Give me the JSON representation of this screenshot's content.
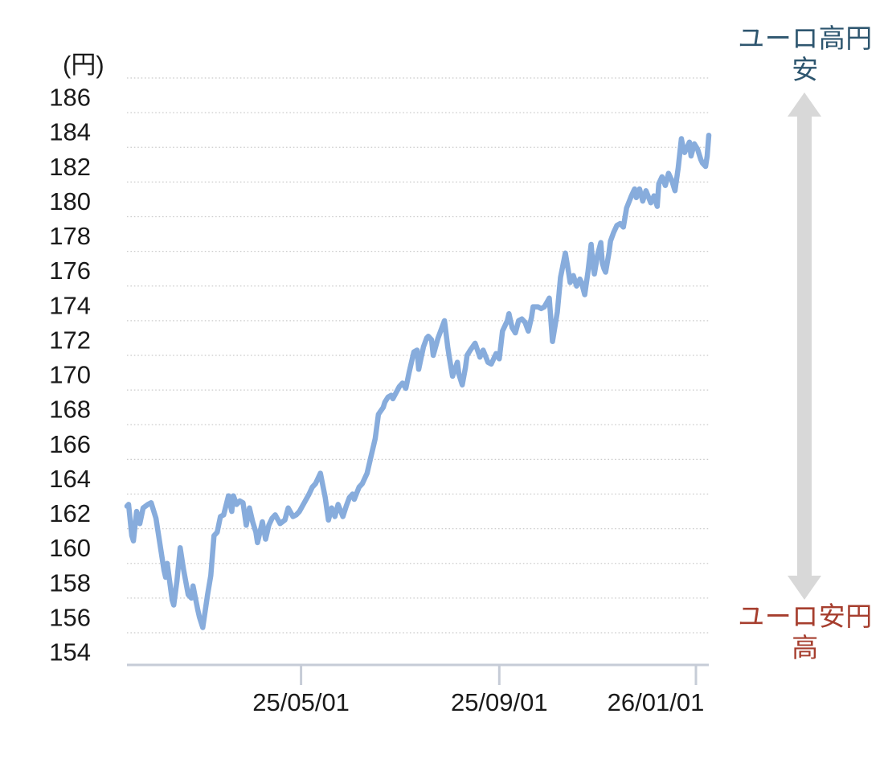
{
  "chart_data": {
    "type": "line",
    "title": "",
    "y_axis": {
      "unit_label": "(円)",
      "ticks": [
        186,
        184,
        182,
        180,
        178,
        176,
        174,
        172,
        170,
        168,
        166,
        164,
        162,
        160,
        158,
        156,
        154
      ],
      "ylim": [
        152.2,
        186
      ],
      "grid": "dotted"
    },
    "x_axis": {
      "start_date": "2025-01-13",
      "end_date": "2026-01-09",
      "span_days": 361,
      "ticks": [
        {
          "label": "25/05/01",
          "date": "2025-05-01"
        },
        {
          "label": "25/09/01",
          "date": "2025-09-01"
        },
        {
          "label": "26/01/01",
          "date": "2026-01-01"
        }
      ]
    },
    "series": [
      {
        "points": [
          [
            "2025-01-13",
            161.3
          ],
          [
            "2025-01-14",
            161.4
          ],
          [
            "2025-01-16",
            159.6
          ],
          [
            "2025-01-17",
            159.3
          ],
          [
            "2025-01-19",
            161.0
          ],
          [
            "2025-01-21",
            160.3
          ],
          [
            "2025-01-23",
            161.2
          ],
          [
            "2025-01-26",
            161.4
          ],
          [
            "2025-01-28",
            161.5
          ],
          [
            "2025-01-31",
            160.6
          ],
          [
            "2025-02-02",
            159.4
          ],
          [
            "2025-02-05",
            157.6
          ],
          [
            "2025-02-06",
            157.2
          ],
          [
            "2025-02-07",
            158.0
          ],
          [
            "2025-02-10",
            155.9
          ],
          [
            "2025-02-11",
            155.6
          ],
          [
            "2025-02-13",
            157.0
          ],
          [
            "2025-02-15",
            158.9
          ],
          [
            "2025-02-17",
            157.7
          ],
          [
            "2025-02-20",
            156.2
          ],
          [
            "2025-02-22",
            156.0
          ],
          [
            "2025-02-23",
            156.7
          ],
          [
            "2025-02-26",
            155.3
          ],
          [
            "2025-02-27",
            154.9
          ],
          [
            "2025-03-01",
            154.3
          ],
          [
            "2025-03-04",
            156.2
          ],
          [
            "2025-03-06",
            157.3
          ],
          [
            "2025-03-08",
            159.6
          ],
          [
            "2025-03-10",
            159.8
          ],
          [
            "2025-03-12",
            160.7
          ],
          [
            "2025-03-14",
            160.8
          ],
          [
            "2025-03-17",
            161.9
          ],
          [
            "2025-03-19",
            161.0
          ],
          [
            "2025-03-20",
            161.9
          ],
          [
            "2025-03-22",
            161.4
          ],
          [
            "2025-03-24",
            161.6
          ],
          [
            "2025-03-26",
            161.5
          ],
          [
            "2025-03-28",
            160.2
          ],
          [
            "2025-03-30",
            161.2
          ],
          [
            "2025-04-01",
            160.4
          ],
          [
            "2025-04-03",
            159.8
          ],
          [
            "2025-04-04",
            159.2
          ],
          [
            "2025-04-07",
            160.4
          ],
          [
            "2025-04-09",
            159.4
          ],
          [
            "2025-04-11",
            160.2
          ],
          [
            "2025-04-13",
            160.6
          ],
          [
            "2025-04-15",
            160.8
          ],
          [
            "2025-04-18",
            160.3
          ],
          [
            "2025-04-21",
            160.5
          ],
          [
            "2025-04-23",
            161.2
          ],
          [
            "2025-04-26",
            160.7
          ],
          [
            "2025-04-28",
            160.8
          ],
          [
            "2025-04-30",
            161.0
          ],
          [
            "2025-05-03",
            161.5
          ],
          [
            "2025-05-06",
            162.0
          ],
          [
            "2025-05-08",
            162.4
          ],
          [
            "2025-05-10",
            162.6
          ],
          [
            "2025-05-13",
            163.2
          ],
          [
            "2025-05-16",
            161.8
          ],
          [
            "2025-05-18",
            160.5
          ],
          [
            "2025-05-20",
            161.2
          ],
          [
            "2025-05-22",
            160.7
          ],
          [
            "2025-05-24",
            161.4
          ],
          [
            "2025-05-27",
            160.7
          ],
          [
            "2025-05-29",
            161.3
          ],
          [
            "2025-05-31",
            161.8
          ],
          [
            "2025-06-02",
            162.0
          ],
          [
            "2025-06-03",
            161.7
          ],
          [
            "2025-06-06",
            162.4
          ],
          [
            "2025-06-08",
            162.6
          ],
          [
            "2025-06-11",
            163.2
          ],
          [
            "2025-06-13",
            164.0
          ],
          [
            "2025-06-16",
            165.2
          ],
          [
            "2025-06-18",
            166.6
          ],
          [
            "2025-06-21",
            167.0
          ],
          [
            "2025-06-22",
            167.3
          ],
          [
            "2025-06-24",
            167.6
          ],
          [
            "2025-06-26",
            167.7
          ],
          [
            "2025-06-27",
            167.5
          ],
          [
            "2025-07-01",
            168.2
          ],
          [
            "2025-07-03",
            168.4
          ],
          [
            "2025-07-05",
            168.1
          ],
          [
            "2025-07-07",
            169.0
          ],
          [
            "2025-07-10",
            170.2
          ],
          [
            "2025-07-12",
            170.3
          ],
          [
            "2025-07-13",
            169.2
          ],
          [
            "2025-07-16",
            170.5
          ],
          [
            "2025-07-18",
            171.0
          ],
          [
            "2025-07-19",
            171.1
          ],
          [
            "2025-07-21",
            170.9
          ],
          [
            "2025-07-22",
            170.0
          ],
          [
            "2025-07-25",
            171.0
          ],
          [
            "2025-07-27",
            171.5
          ],
          [
            "2025-07-29",
            172.0
          ],
          [
            "2025-07-31",
            170.5
          ],
          [
            "2025-08-01",
            169.9
          ],
          [
            "2025-08-03",
            168.8
          ],
          [
            "2025-08-06",
            169.6
          ],
          [
            "2025-08-07",
            168.9
          ],
          [
            "2025-08-09",
            168.3
          ],
          [
            "2025-08-11",
            169.3
          ],
          [
            "2025-08-12",
            170.0
          ],
          [
            "2025-08-14",
            170.3
          ],
          [
            "2025-08-17",
            170.7
          ],
          [
            "2025-08-20",
            169.9
          ],
          [
            "2025-08-22",
            170.3
          ],
          [
            "2025-08-25",
            169.6
          ],
          [
            "2025-08-27",
            169.5
          ],
          [
            "2025-08-30",
            170.1
          ],
          [
            "2025-09-01",
            169.8
          ],
          [
            "2025-09-03",
            171.4
          ],
          [
            "2025-09-06",
            172.0
          ],
          [
            "2025-09-07",
            172.4
          ],
          [
            "2025-09-09",
            171.6
          ],
          [
            "2025-09-11",
            171.3
          ],
          [
            "2025-09-13",
            172.0
          ],
          [
            "2025-09-15",
            172.1
          ],
          [
            "2025-09-17",
            171.9
          ],
          [
            "2025-09-19",
            171.4
          ],
          [
            "2025-09-21",
            172.2
          ],
          [
            "2025-09-22",
            172.8
          ],
          [
            "2025-09-25",
            172.8
          ],
          [
            "2025-09-27",
            172.7
          ],
          [
            "2025-09-29",
            172.8
          ],
          [
            "2025-10-02",
            173.3
          ],
          [
            "2025-10-04",
            170.8
          ],
          [
            "2025-10-07",
            172.5
          ],
          [
            "2025-10-09",
            174.5
          ],
          [
            "2025-10-12",
            175.9
          ],
          [
            "2025-10-14",
            174.8
          ],
          [
            "2025-10-15",
            174.2
          ],
          [
            "2025-10-17",
            174.6
          ],
          [
            "2025-10-19",
            174.0
          ],
          [
            "2025-10-21",
            174.4
          ],
          [
            "2025-10-22",
            174.2
          ],
          [
            "2025-10-24",
            173.5
          ],
          [
            "2025-10-26",
            174.8
          ],
          [
            "2025-10-28",
            176.4
          ],
          [
            "2025-10-29",
            175.3
          ],
          [
            "2025-10-30",
            174.7
          ],
          [
            "2025-11-01",
            175.8
          ],
          [
            "2025-11-03",
            176.5
          ],
          [
            "2025-11-04",
            175.3
          ],
          [
            "2025-11-05",
            175.0
          ],
          [
            "2025-11-06",
            174.8
          ],
          [
            "2025-11-08",
            175.9
          ],
          [
            "2025-11-09",
            176.6
          ],
          [
            "2025-11-11",
            177.1
          ],
          [
            "2025-11-13",
            177.5
          ],
          [
            "2025-11-15",
            177.6
          ],
          [
            "2025-11-17",
            177.4
          ],
          [
            "2025-11-19",
            178.5
          ],
          [
            "2025-11-22",
            179.2
          ],
          [
            "2025-11-24",
            179.6
          ],
          [
            "2025-11-25",
            179.1
          ],
          [
            "2025-11-27",
            179.6
          ],
          [
            "2025-11-29",
            178.9
          ],
          [
            "2025-12-01",
            179.5
          ],
          [
            "2025-12-04",
            178.8
          ],
          [
            "2025-12-06",
            179.2
          ],
          [
            "2025-12-08",
            178.6
          ],
          [
            "2025-12-09",
            179.9
          ],
          [
            "2025-12-11",
            180.3
          ],
          [
            "2025-12-13",
            179.8
          ],
          [
            "2025-12-15",
            180.5
          ],
          [
            "2025-12-17",
            180.1
          ],
          [
            "2025-12-19",
            179.5
          ],
          [
            "2025-12-21",
            180.8
          ],
          [
            "2025-12-23",
            182.5
          ],
          [
            "2025-12-24",
            182.0
          ],
          [
            "2025-12-25",
            181.7
          ],
          [
            "2025-12-28",
            182.3
          ],
          [
            "2025-12-29",
            181.5
          ],
          [
            "2025-12-31",
            182.2
          ],
          [
            "2026-01-02",
            181.9
          ],
          [
            "2026-01-04",
            181.3
          ],
          [
            "2026-01-05",
            181.1
          ],
          [
            "2026-01-07",
            180.9
          ],
          [
            "2026-01-08",
            181.5
          ],
          [
            "2026-01-09",
            182.7
          ]
        ]
      }
    ],
    "annotations": {
      "high": {
        "text": "ユーロ高円安",
        "color": "#2E566F"
      },
      "low": {
        "text": "ユーロ安円高",
        "color": "#A63E2E"
      },
      "arrow": "up-down-arrow"
    },
    "colors": {
      "line": "#87ACDC",
      "gridline": "#cbcbcb",
      "axis": "#c6ccd7",
      "tick_label": "#1a1a1a",
      "arrow": "#d8d8d8"
    },
    "legend": "none"
  }
}
